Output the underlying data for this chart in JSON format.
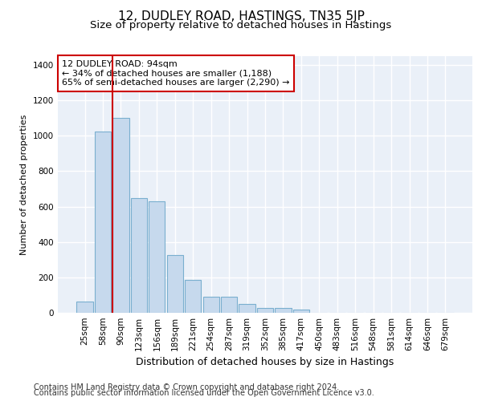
{
  "title": "12, DUDLEY ROAD, HASTINGS, TN35 5JP",
  "subtitle": "Size of property relative to detached houses in Hastings",
  "xlabel": "Distribution of detached houses by size in Hastings",
  "ylabel": "Number of detached properties",
  "bar_color": "#c6d9ed",
  "bar_edge_color": "#7aafcf",
  "background_color": "#eaf0f8",
  "grid_color": "#ffffff",
  "categories": [
    "25sqm",
    "58sqm",
    "90sqm",
    "123sqm",
    "156sqm",
    "189sqm",
    "221sqm",
    "254sqm",
    "287sqm",
    "319sqm",
    "352sqm",
    "385sqm",
    "417sqm",
    "450sqm",
    "483sqm",
    "516sqm",
    "548sqm",
    "581sqm",
    "614sqm",
    "646sqm",
    "679sqm"
  ],
  "values": [
    65,
    1025,
    1100,
    650,
    630,
    325,
    185,
    90,
    90,
    48,
    28,
    25,
    18,
    0,
    0,
    0,
    0,
    0,
    0,
    0,
    0
  ],
  "ylim": [
    0,
    1450
  ],
  "yticks": [
    0,
    200,
    400,
    600,
    800,
    1000,
    1200,
    1400
  ],
  "vline_color": "#cc0000",
  "annotation_text": "12 DUDLEY ROAD: 94sqm\n← 34% of detached houses are smaller (1,188)\n65% of semi-detached houses are larger (2,290) →",
  "annotation_box_color": "#cc0000",
  "footnote_line1": "Contains HM Land Registry data © Crown copyright and database right 2024.",
  "footnote_line2": "Contains public sector information licensed under the Open Government Licence v3.0.",
  "title_fontsize": 11,
  "subtitle_fontsize": 9.5,
  "xlabel_fontsize": 9,
  "ylabel_fontsize": 8,
  "tick_fontsize": 7.5,
  "annotation_fontsize": 8,
  "footnote_fontsize": 7
}
